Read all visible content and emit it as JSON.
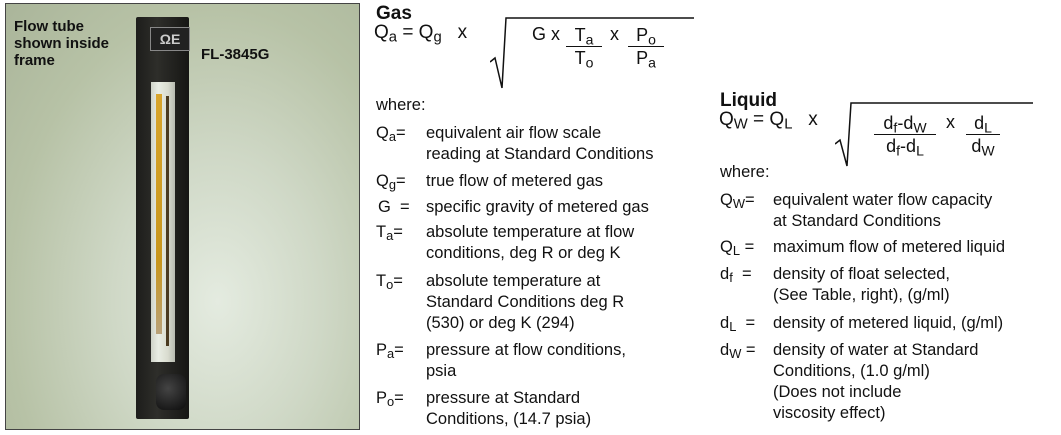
{
  "photo": {
    "caption": [
      "Flow tube",
      "shown inside",
      "frame"
    ],
    "model": "FL-3845G",
    "logo_text": "ΩE"
  },
  "gas": {
    "heading": "Gas",
    "formula": {
      "lhs": "Q",
      "lhs_sub": "a",
      "eq": "= Q",
      "eq_sub": "g",
      "times": "x",
      "g": "G x",
      "f1_num": "T",
      "f1_num_sub": "a",
      "f1_den": "T",
      "f1_den_sub": "o",
      "times2": "x",
      "f2_num": "P",
      "f2_num_sub": "o",
      "f2_den": "P",
      "f2_den_sub": "a"
    },
    "where": "where:",
    "definitions": [
      {
        "symbol": "Q",
        "sub": "a",
        "eq": "=",
        "lines": [
          "equivalent air flow scale",
          "reading at Standard Conditions"
        ]
      },
      {
        "symbol": "Q",
        "sub": "g",
        "eq": "=",
        "lines": [
          "true flow of metered gas"
        ]
      },
      {
        "symbol": "G",
        "sub": "",
        "eq": "=",
        "lines": [
          "specific gravity of metered gas"
        ]
      },
      {
        "symbol": "T",
        "sub": "a",
        "eq": "=",
        "lines": [
          "absolute temperature at flow",
          "conditions, deg R or deg K"
        ]
      },
      {
        "symbol": "T",
        "sub": "o",
        "eq": "=",
        "lines": [
          "absolute temperature at",
          "Standard Conditions deg R",
          "(530) or deg K (294)"
        ]
      },
      {
        "symbol": "P",
        "sub": "a",
        "eq": "=",
        "lines": [
          "pressure at flow conditions,",
          "psia"
        ]
      },
      {
        "symbol": "P",
        "sub": "o",
        "eq": "=",
        "lines": [
          "pressure at Standard",
          "Conditions, (14.7 psia)"
        ]
      }
    ]
  },
  "liquid": {
    "heading": "Liquid",
    "formula": {
      "lhs": "Q",
      "lhs_sub": "W",
      "eq": "= Q",
      "eq_sub": "L",
      "times": "x",
      "f1_num": "d",
      "f1_num_sub": "f",
      "f1_num2": "-d",
      "f1_num2_sub": "W",
      "f1_den": "d",
      "f1_den_sub": "f",
      "f1_den2": "-d",
      "f1_den2_sub": "L",
      "times2": "x",
      "f2_num": "d",
      "f2_num_sub": "L",
      "f2_den": "d",
      "f2_den_sub": "W"
    },
    "where": "where:",
    "definitions": [
      {
        "symbol": "Q",
        "sub": "W",
        "eq": "=",
        "lines": [
          "equivalent water flow capacity",
          "at Standard Conditions"
        ]
      },
      {
        "symbol": "Q",
        "sub": "L",
        "eq": "=",
        "lines": [
          "maximum flow of metered liquid"
        ]
      },
      {
        "symbol": "d",
        "sub": "f",
        "eq": "=",
        "lines": [
          "density of float selected,",
          "(See Table, right), (g/ml)"
        ]
      },
      {
        "symbol": "d",
        "sub": "L",
        "eq": "=",
        "lines": [
          "density of metered liquid, (g/ml)"
        ]
      },
      {
        "symbol": "d",
        "sub": "W",
        "eq": "=",
        "lines": [
          "density of water at Standard",
          "Conditions, (1.0 g/ml)",
          "(Does not include",
          "viscosity effect)"
        ]
      }
    ]
  }
}
